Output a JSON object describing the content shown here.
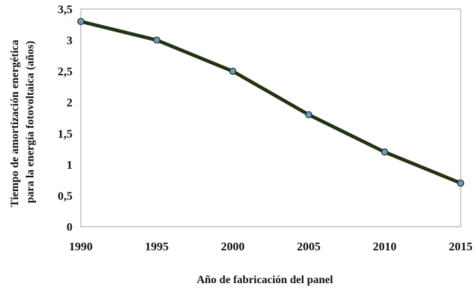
{
  "chart_data": {
    "type": "line",
    "x": [
      1990,
      1995,
      2000,
      2005,
      2010,
      2015
    ],
    "series": [
      {
        "values": [
          3.3,
          3.0,
          2.5,
          1.8,
          1.2,
          0.7
        ]
      }
    ],
    "xlabel": "Año de fabricación del panel",
    "ylabel_line1": "Tiempo de amortización energética",
    "ylabel_line2": "para la energía fotovoltaica (años)",
    "xlim": [
      1990,
      2015
    ],
    "ylim": [
      0,
      3.5
    ],
    "x_ticks": [
      "1990",
      "1995",
      "2000",
      "2005",
      "2010",
      "2015"
    ],
    "y_ticks": [
      "0",
      "0,5",
      "1",
      "1,5",
      "2",
      "2,5",
      "3",
      "3,5"
    ],
    "grid": false,
    "legend": "none",
    "colors": {
      "line": "#223311",
      "marker": "#6b9ac6",
      "frame": "#bfbfbf"
    }
  }
}
